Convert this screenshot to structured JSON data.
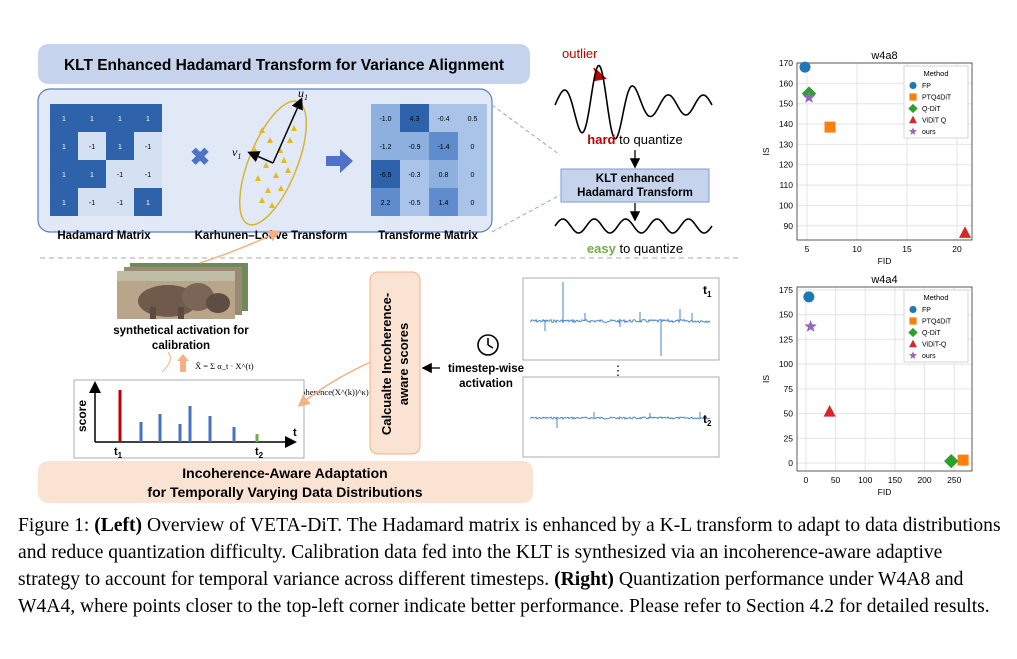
{
  "left": {
    "klt_title": "KLT Enhanced Hadamard Transform for Variance Alignment",
    "had_matrix": [
      [
        "1",
        "1",
        "1",
        "1"
      ],
      [
        "1",
        "-1",
        "1",
        "-1"
      ],
      [
        "1",
        "1",
        "-1",
        "-1"
      ],
      [
        "1",
        "-1",
        "-1",
        "1"
      ]
    ],
    "had_label": "Hadamard Matrix",
    "klt_label": "Karhunen–Loève Transform",
    "u1_label": "u",
    "u1_sub": "1",
    "v1_label": "v",
    "v1_sub": "1",
    "tm_matrix": [
      [
        "-1.0",
        "4.3",
        "-0.4",
        "0.5"
      ],
      [
        "-1.2",
        "-0.9",
        "-1.4",
        "0"
      ],
      [
        "-6.5",
        "-0.3",
        "0.8",
        "0"
      ],
      [
        "2.2",
        "-0.5",
        "1.4",
        "0"
      ]
    ],
    "tm_label": "Transforme Matrix",
    "outlier_label": "outlier",
    "hard_bold": "hard",
    "hard_rest": " to quantize",
    "klt_box_line1": "KLT enhanced",
    "klt_box_line2": "Hadamard Transform",
    "easy_bold": "easy",
    "easy_rest": " to quantize",
    "synth_line1": "synthetical activation for",
    "synth_line2": "calibration",
    "xhat_formula": "X̂ = Σ α_t · X^(t)",
    "alpha_formula": "α_t = exp(Incoherence(X^(t))^κ) / Σ exp(Incoherence(X^(k))^κ)",
    "score_label": "score",
    "t_label": "t",
    "t1_label": "t",
    "t1_sub": "1",
    "t2_label": "t",
    "t2_sub": "2",
    "calc_line1": "Calcualte Incoherence-",
    "calc_line2": "aware scores",
    "timestep_line1": "timestep-wise",
    "timestep_line2": "activation",
    "act_t1": "t",
    "act_t1_sub": "1",
    "act_t2": "t",
    "act_t2_sub": "2",
    "dots": "⋮",
    "adapt_line1": "Incoherence-Aware Adaptation",
    "adapt_line2": "for Temporally Varying Data Distributions",
    "colors": {
      "blue_dark": "#2e63ab",
      "blue_light": "#d4e1f2",
      "panel_fill": "#e1e9f6",
      "panel_stroke": "#5b7fbf",
      "title_fill": "#c5d3ec",
      "peach": "#fbe3d4",
      "arrow_blue": "#4f72c9",
      "red": "#c00000",
      "green": "#70ad47",
      "orange": "#f4b183"
    }
  },
  "chart_data": [
    {
      "type": "scatter",
      "title": "w4a8",
      "xlabel": "FID",
      "ylabel": "IS",
      "xlim": [
        4,
        21.5
      ],
      "ylim": [
        83,
        170
      ],
      "xticks": [
        5,
        10,
        15,
        20
      ],
      "yticks": [
        90,
        100,
        110,
        120,
        130,
        140,
        150,
        160,
        170
      ],
      "legend_title": "Method",
      "legend_position": "top-right",
      "grid": true,
      "points": [
        {
          "method": "FP",
          "x": 4.8,
          "y": 168,
          "color": "#1f77b4",
          "marker": "circle"
        },
        {
          "method": "PTQ4DiT",
          "x": 7.3,
          "y": 138.5,
          "color": "#ff7f0e",
          "marker": "square"
        },
        {
          "method": "Q-DiT",
          "x": 5.2,
          "y": 155,
          "color": "#2ca02c",
          "marker": "diamond"
        },
        {
          "method": "ViDiT Q",
          "x": 20.8,
          "y": 86.5,
          "color": "#d62728",
          "marker": "triangle"
        },
        {
          "method": "ours",
          "x": 5.2,
          "y": 153,
          "color": "#9467bd",
          "marker": "star"
        }
      ]
    },
    {
      "type": "scatter",
      "title": "w4a4",
      "xlabel": "FID",
      "ylabel": "IS",
      "xlim": [
        -15,
        280
      ],
      "ylim": [
        -8,
        178
      ],
      "xticks": [
        0,
        50,
        100,
        150,
        200,
        250
      ],
      "yticks": [
        0,
        25,
        50,
        75,
        100,
        125,
        150,
        175
      ],
      "legend_title": "Method",
      "legend_position": "top-right",
      "grid": true,
      "points": [
        {
          "method": "FP",
          "x": 5,
          "y": 168,
          "color": "#1f77b4",
          "marker": "circle"
        },
        {
          "method": "PTQ4DiT",
          "x": 265,
          "y": 3,
          "color": "#ff7f0e",
          "marker": "square"
        },
        {
          "method": "Q-DiT",
          "x": 245,
          "y": 2,
          "color": "#2ca02c",
          "marker": "diamond"
        },
        {
          "method": "ViDiT-Q",
          "x": 40,
          "y": 52,
          "color": "#d62728",
          "marker": "triangle"
        },
        {
          "method": "ours",
          "x": 8,
          "y": 138,
          "color": "#9467bd",
          "marker": "star"
        }
      ]
    }
  ],
  "caption": {
    "fig_label": "Figure 1:",
    "left_bold": "(Left)",
    "left_text": " Overview of VETA-DiT. The Hadamard matrix is enhanced by a K-L transform to adapt to data distributions and reduce quantization difficulty. Calibration data fed into the KLT is synthesized via an incoherence-aware adaptive strategy to account for temporal variance across different timesteps.",
    "right_bold": "(Right)",
    "right_text": " Quantization performance under W4A8 and W4A4, where points closer to the top-left corner indicate better performance. Please refer to Section 4.2 for detailed results."
  }
}
